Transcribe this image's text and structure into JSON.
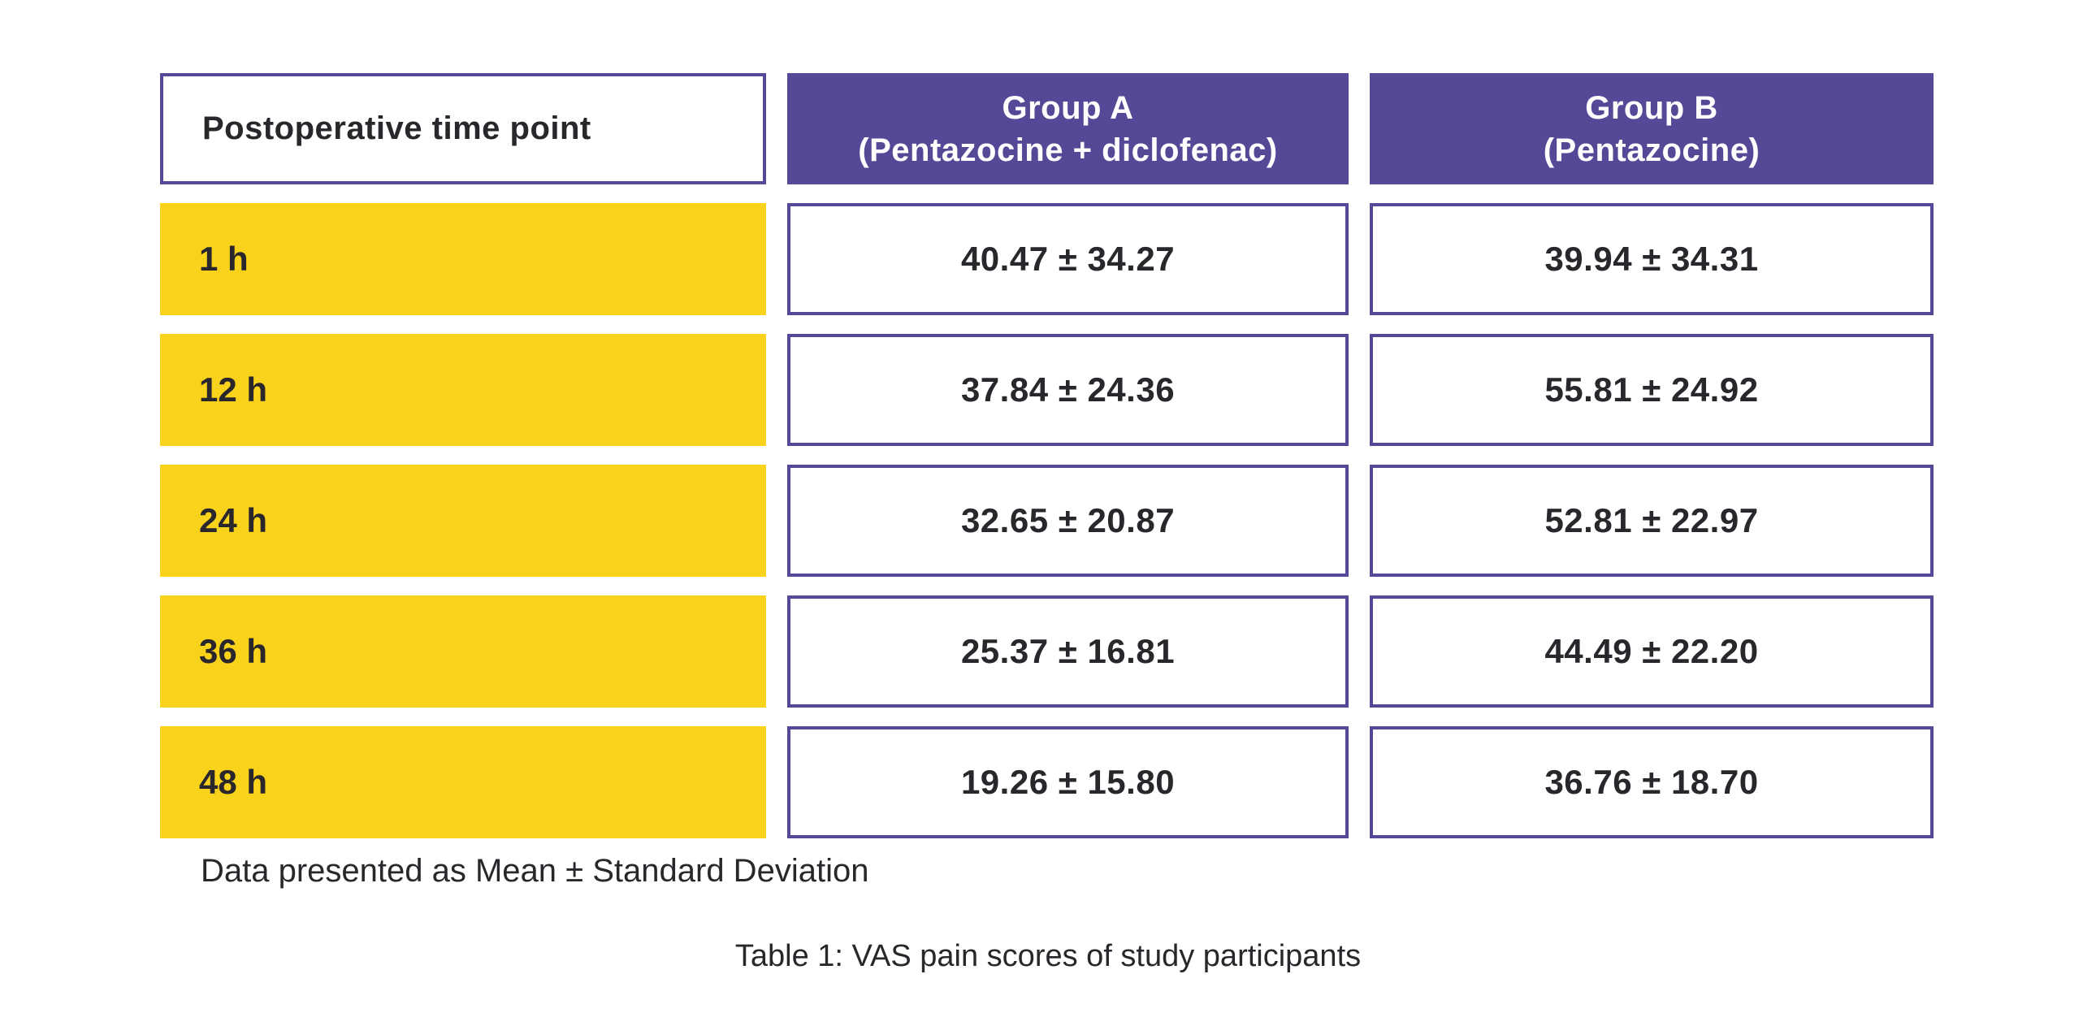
{
  "colors": {
    "purple": "#564896",
    "yellow": "#f9d21c",
    "ink": "#29272b",
    "header_text": "#ffffff",
    "background": "#ffffff"
  },
  "table": {
    "header": {
      "timepoint": {
        "label": "Postoperative time point"
      },
      "group_a": {
        "line1": "Group A",
        "line2": "(Pentazocine + diclofenac)"
      },
      "group_b": {
        "line1": "Group B",
        "line2": "(Pentazocine)"
      }
    },
    "rows": [
      {
        "timepoint": "1 h",
        "group_a": "40.47 ± 34.27",
        "group_b": "39.94 ± 34.31"
      },
      {
        "timepoint": "12 h",
        "group_a": "37.84 ± 24.36",
        "group_b": "55.81 ± 24.92"
      },
      {
        "timepoint": "24 h",
        "group_a": "32.65 ± 20.87",
        "group_b": "52.81 ± 22.97"
      },
      {
        "timepoint": "36 h",
        "group_a": "25.37 ± 16.81",
        "group_b": "44.49 ± 22.20"
      },
      {
        "timepoint": "48 h",
        "group_a": "19.26 ± 15.80",
        "group_b": "36.76 ± 18.70"
      }
    ],
    "footnote": "Data presented as Mean ± Standard Deviation"
  },
  "caption": "Table 1: VAS pain scores of study participants",
  "chart_data": {
    "type": "table",
    "title": "Table 1: VAS pain scores of study participants",
    "columns": [
      "Postoperative time point",
      "Group A (Pentazocine + diclofenac)",
      "Group B (Pentazocine)"
    ],
    "categories": [
      "1 h",
      "12 h",
      "24 h",
      "36 h",
      "48 h"
    ],
    "series": [
      {
        "name": "Group A (Pentazocine + diclofenac)",
        "mean": [
          40.47,
          37.84,
          32.65,
          25.37,
          19.26
        ],
        "sd": [
          34.27,
          24.36,
          20.87,
          16.81,
          15.8
        ]
      },
      {
        "name": "Group B (Pentazocine)",
        "mean": [
          39.94,
          55.81,
          52.81,
          44.49,
          36.76
        ],
        "sd": [
          34.31,
          24.92,
          22.97,
          22.2,
          18.7
        ]
      }
    ],
    "value_format": "mean ± sd",
    "footnote": "Data presented as Mean ± Standard Deviation"
  }
}
